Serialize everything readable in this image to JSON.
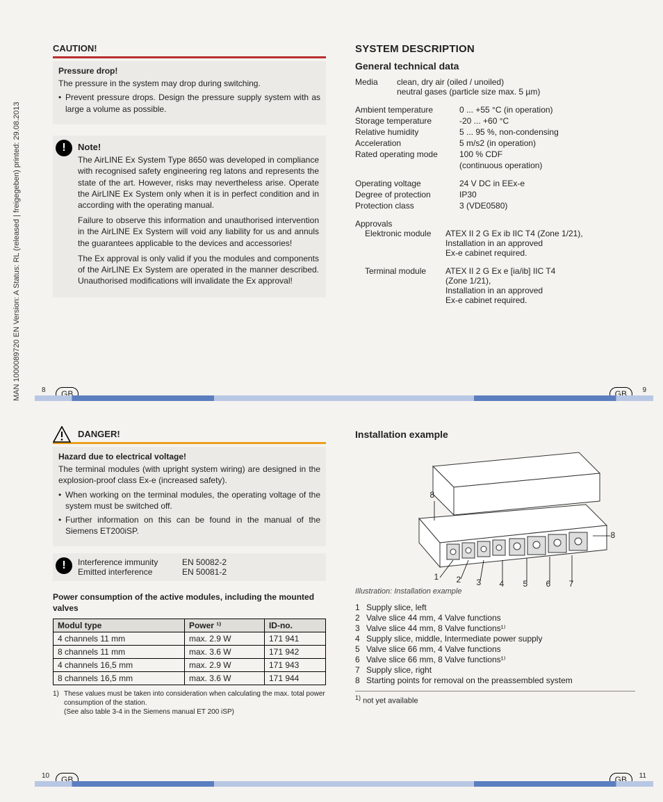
{
  "side_text": "MAN  1000089720  EN  Version: A  Status: RL (released | freigegeben)  printed: 29.08.2013",
  "gb_label": "GB",
  "pages": {
    "p8": "8",
    "p9": "9",
    "p10": "10",
    "p11": "11"
  },
  "caution": {
    "title": "CAUTION!",
    "sub": "Pressure drop!",
    "line1": "The pressure in the system may drop during switching.",
    "bullet": "Prevent pressure drops. Design the pressure supply system with as large a volume as possible."
  },
  "note": {
    "title": "Note!",
    "p1": "The AirLINE Ex System Type 8650 was developed in compliance with recognised safety engineering reg latons and represents the state of the art. However, risks may nevertheless arise. Operate the AirLINE Ex System only when it is in perfect condition and in according with the operating manual.",
    "p2": "Failure to observe this information and unauthorised intervention in the AirLINE Ex System will void any liability for us and annuls the guarantees applicable to the devices and accessories!",
    "p3": "The Ex approval is only valid if you the modules and components of the AirLINE Ex System are operated in the manner described. Unauthorised modifications will invalidate the Ex approval!"
  },
  "sysdesc": {
    "h1": "SYSTEM DESCRIPTION",
    "h2": "General technical data",
    "media_label": "Media",
    "media_v1": "clean, dry air (oiled / unoiled)",
    "media_v2": "neutral gases (particle size max. 5 µm)",
    "rows1": [
      {
        "k": "Ambient temperature",
        "v": "0 ... +55 °C (in operation)"
      },
      {
        "k": "Storage temperature",
        "v": "-20 ... +60 °C"
      },
      {
        "k": "Relative humidity",
        "v": "5 ... 95 %, non-condensing"
      },
      {
        "k": "Acceleration",
        "v": "5 m/s2 (in operation)"
      },
      {
        "k": "Rated operating mode",
        "v": "100 % CDF"
      },
      {
        "k": "",
        "v": "(continuous operation)"
      }
    ],
    "rows2": [
      {
        "k": "Operating voltage",
        "v": "24 V DC in EEx-e"
      },
      {
        "k": "Degree of protection",
        "v": "IP30"
      },
      {
        "k": "Protection class",
        "v": "3 (VDE0580)"
      }
    ],
    "approvals_label": "Approvals",
    "app1": {
      "k": "Elektronic module",
      "v1": "ATEX II 2 G Ex ib IIC T4 (Zone 1/21),",
      "v2": "Installation in an approved",
      "v3": "Ex-e cabinet required."
    },
    "app2": {
      "k": "Terminal  module",
      "v1": "ATEX II 2 G Ex e [ia/ib] IIC T4",
      "v2": "(Zone 1/21),",
      "v3": "Installation in an approved",
      "v4": "Ex-e cabinet required."
    }
  },
  "danger": {
    "title": "DANGER!",
    "sub": "Hazard due to electrical voltage!",
    "line1": "The terminal modules (with upright system wiring) are designed in the explosion-proof class Ex-e (increased safety).",
    "b1": "When working on the terminal modules, the operating voltage of the system must be switched off.",
    "b2": "Further information on this can be found in the manual of the Siemens ET200iSP."
  },
  "interf": {
    "r1k": "Interference immunity",
    "r1v": "EN 50082-2",
    "r2k": "Emitted interference",
    "r2v": "EN 50081-2"
  },
  "pwr": {
    "title": "Power consumption of the active modules, including the mounted valves",
    "headers": [
      "Modul type",
      "Power ¹⁾",
      "ID-no."
    ],
    "rows": [
      [
        "4 channels 11 mm",
        "max. 2.9 W",
        "171 941"
      ],
      [
        "8 channels 11 mm",
        "max. 3.6 W",
        "171 942"
      ],
      [
        "4 channels 16,5 mm",
        "max. 2.9 W",
        "171 943"
      ],
      [
        "8 channels 16,5 mm",
        "max. 3.6 W",
        "171 944"
      ]
    ],
    "foot_marker": "1)",
    "foot": "These values must be taken into consideration when calculating the max. total power consumption of the station.\n(See also table 3-4 in the Siemens manual ET 200 iSP)"
  },
  "install": {
    "title": "Installation example",
    "caption": "Illustration: Installation example",
    "legend": [
      {
        "n": "1",
        "t": "Supply slice, left"
      },
      {
        "n": "2",
        "t": "Valve slice 44 mm, 4 Valve functions"
      },
      {
        "n": "3",
        "t": "Valve slice 44 mm, 8 Valve functions¹⁾"
      },
      {
        "n": "4",
        "t": "Supply slice, middle, Intermediate power supply"
      },
      {
        "n": "5",
        "t": "Valve slice 66 mm, 4 Valve functions"
      },
      {
        "n": "6",
        "t": "Valve slice 66 mm, 8 Valve functions¹⁾"
      },
      {
        "n": "7",
        "t": "Supply slice, right"
      },
      {
        "n": "8",
        "t": "Starting points for removal on the preassembled system"
      }
    ],
    "foot_marker": "1)",
    "foot": "not yet available"
  }
}
